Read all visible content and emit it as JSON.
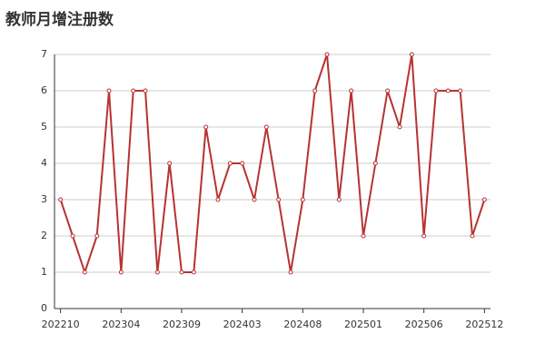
{
  "chart_data": {
    "type": "line",
    "title": "教师月增注册数",
    "categories": [
      "202210",
      null,
      null,
      null,
      null,
      "202304",
      null,
      null,
      null,
      null,
      "202309",
      null,
      null,
      null,
      null,
      "202403",
      null,
      null,
      null,
      null,
      "202408",
      null,
      null,
      null,
      null,
      "202501",
      null,
      null,
      null,
      null,
      "202506",
      null,
      null,
      null,
      null,
      "202512"
    ],
    "values": [
      3,
      2,
      1,
      2,
      6,
      1,
      6,
      6,
      1,
      4,
      1,
      1,
      5,
      3,
      4,
      4,
      3,
      5,
      3,
      1,
      3,
      6,
      7,
      3,
      6,
      2,
      4,
      6,
      5,
      7,
      2,
      6,
      6,
      6,
      2,
      3
    ],
    "color": "#b83232",
    "ylim": [
      0,
      7
    ],
    "yticks": [
      0,
      1,
      2,
      3,
      4,
      5,
      6,
      7
    ],
    "grid": true
  }
}
